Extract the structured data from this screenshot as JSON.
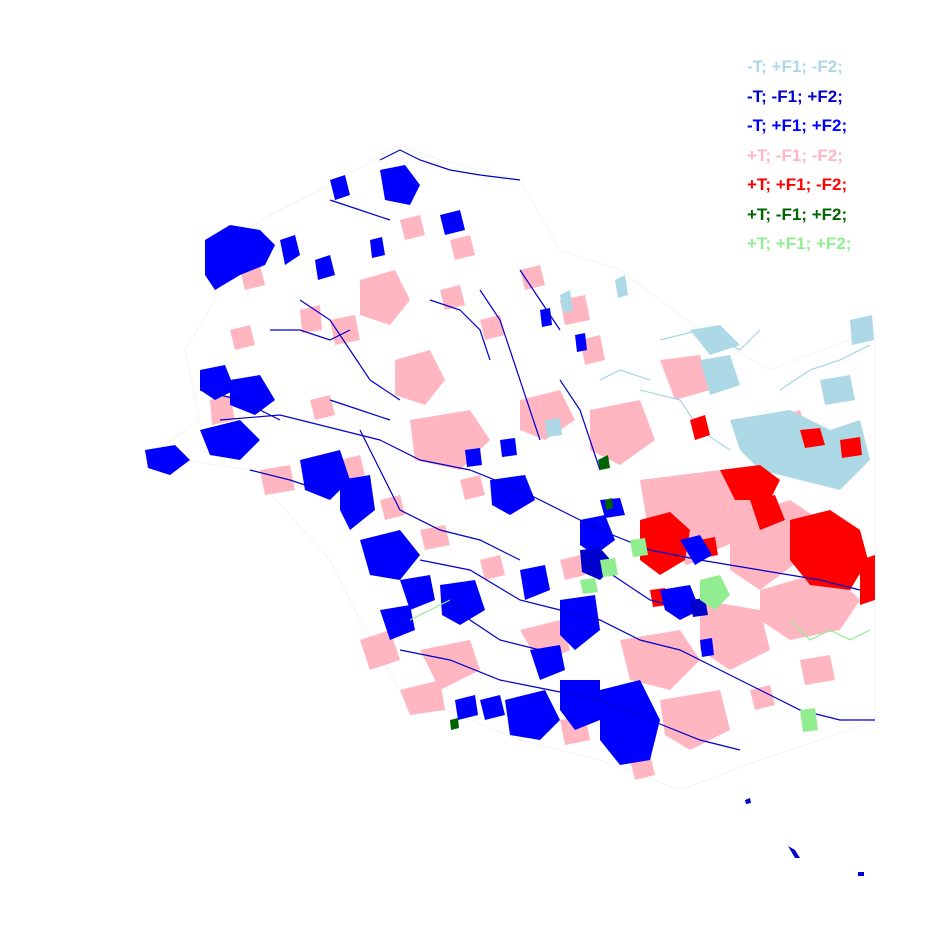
{
  "legend": {
    "items": [
      {
        "label": "-T; +F1; -F2;",
        "color": "#add8e6"
      },
      {
        "label": "-T; -F1; +F2;",
        "color": "#0000cd"
      },
      {
        "label": "-T; +F1; +F2;",
        "color": "#0000ff"
      },
      {
        "label": "+T; -F1; -F2;",
        "color": "#ffb6c1"
      },
      {
        "label": "+T; +F1; -F2;",
        "color": "#ff0000"
      },
      {
        "label": "+T; -F1; +F2;",
        "color": "#006400"
      },
      {
        "label": "+T; +F1; +F2;",
        "color": "#90ee90"
      }
    ]
  },
  "colors": {
    "light_blue": "#add8e6",
    "medium_blue": "#0000cd",
    "blue": "#0000ff",
    "pink": "#ffb6c1",
    "red": "#ff0000",
    "dark_green": "#006400",
    "light_green": "#90ee90",
    "river": "#00008b"
  }
}
